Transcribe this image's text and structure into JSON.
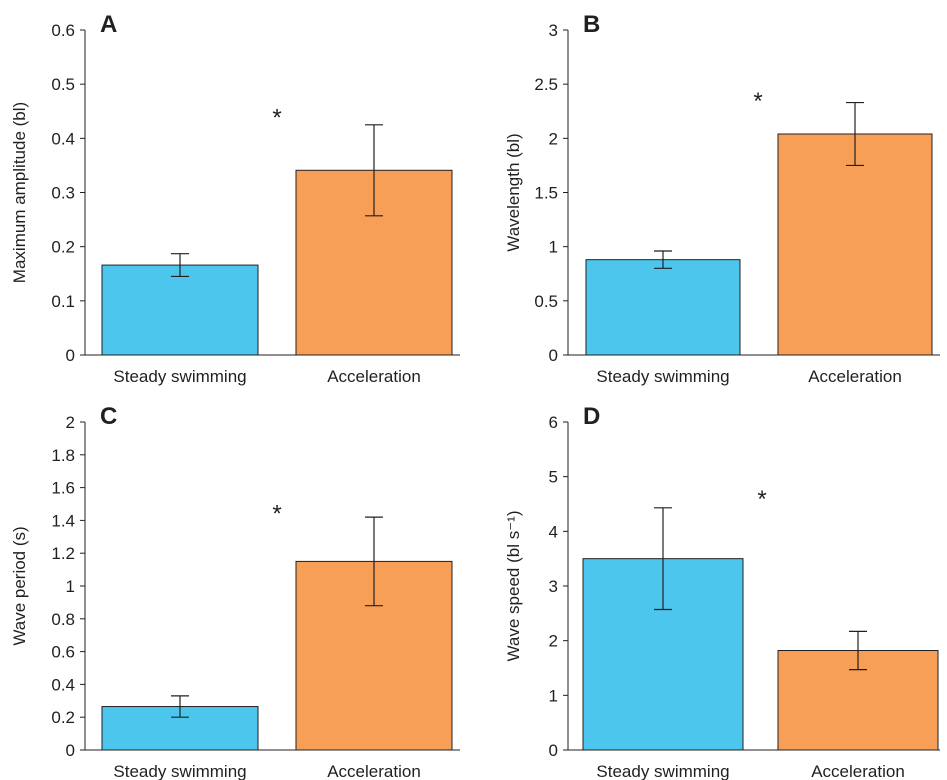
{
  "colors": {
    "steady": "#4cc6ec",
    "accel": "#f89f57",
    "axis": "#231f20"
  },
  "chart_data": [
    {
      "type": "bar",
      "panel": "A",
      "categories": [
        "Steady swimming",
        "Acceleration"
      ],
      "values": [
        0.166,
        0.341
      ],
      "errors": [
        0.021,
        0.084
      ],
      "ylabel": "Maximum amplitude (bl)",
      "ylim": [
        0,
        0.6
      ],
      "yticks": [
        0,
        0.1,
        0.2,
        0.3,
        0.4,
        0.5,
        0.6
      ],
      "ytick_labels": [
        "0",
        "0.1",
        "0.2",
        "0.3",
        "0.4",
        "0.5",
        "0.6"
      ],
      "significance": "*",
      "significance_y": 0.45,
      "grid": false,
      "legend": "none"
    },
    {
      "type": "bar",
      "panel": "B",
      "categories": [
        "Steady swimming",
        "Acceleration"
      ],
      "values": [
        0.88,
        2.04
      ],
      "errors": [
        0.08,
        0.29
      ],
      "ylabel": "Wavelength (bl)",
      "ylim": [
        0,
        3
      ],
      "yticks": [
        0,
        0.5,
        1,
        1.5,
        2,
        2.5,
        3
      ],
      "ytick_labels": [
        "0",
        "0.5",
        "1",
        "1.5",
        "2",
        "2.5",
        "3"
      ],
      "significance": "*",
      "significance_y": 2.4,
      "grid": false,
      "legend": "none"
    },
    {
      "type": "bar",
      "panel": "C",
      "categories": [
        "Steady swimming",
        "Acceleration"
      ],
      "values": [
        0.265,
        1.15
      ],
      "errors": [
        0.065,
        0.27
      ],
      "ylabel": "Wave period (s)",
      "ylim": [
        0,
        2
      ],
      "yticks": [
        0,
        0.2,
        0.4,
        0.6,
        0.8,
        1,
        1.2,
        1.4,
        1.6,
        1.8,
        2
      ],
      "ytick_labels": [
        "0",
        "0.2",
        "0.4",
        "0.6",
        "0.8",
        "1",
        "1.2",
        "1.4",
        "1.6",
        "1.8",
        "2"
      ],
      "significance": "*",
      "significance_y": 1.48,
      "grid": false,
      "legend": "none"
    },
    {
      "type": "bar",
      "panel": "D",
      "categories": [
        "Steady swimming",
        "Acceleration"
      ],
      "values": [
        3.5,
        1.82
      ],
      "errors": [
        0.93,
        0.35
      ],
      "ylabel": "Wave speed (bl s⁻¹)",
      "ylim": [
        0,
        6
      ],
      "yticks": [
        0,
        1,
        2,
        3,
        4,
        5,
        6
      ],
      "ytick_labels": [
        "0",
        "1",
        "2",
        "3",
        "4",
        "5",
        "6"
      ],
      "significance": "*",
      "significance_y": 4.7,
      "grid": false,
      "legend": "none"
    }
  ]
}
